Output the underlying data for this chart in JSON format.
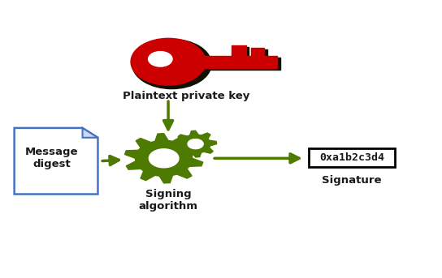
{
  "bg_color": "#ffffff",
  "key_color": "#cc0000",
  "key_shadow_color": "#111100",
  "arrow_color": "#4d7a00",
  "gear_color": "#4d7a00",
  "doc_border_color": "#4472c4",
  "sig_border_color": "#000000",
  "text_color": "#1a1a1a",
  "title_key": "Plaintext private key",
  "title_algo": "Signing\nalgorithm",
  "title_msg": "Message\ndigest",
  "title_sig": "Signature",
  "sig_code": "0xa1b2c3d4",
  "label_fontsize": 9.5,
  "sig_fontsize": 9.5,
  "fig_w": 5.44,
  "fig_h": 3.43,
  "dpi": 100
}
